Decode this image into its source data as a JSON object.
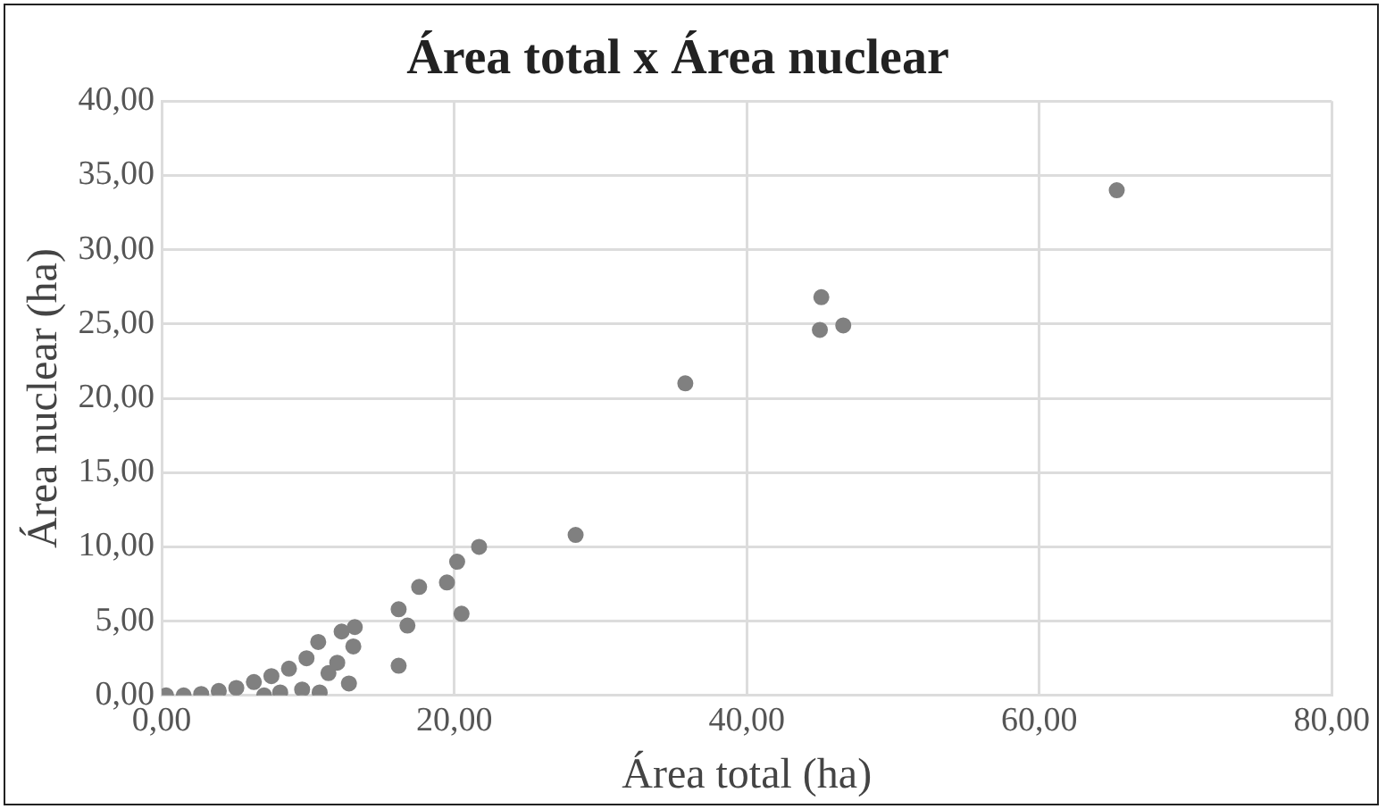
{
  "chart_data": {
    "type": "scatter",
    "title": "Área total x Área nuclear",
    "xlabel": "Área total (ha)",
    "ylabel": "Área nuclear (ha)",
    "x": [
      0.3,
      1.5,
      2.7,
      3.9,
      5.1,
      6.3,
      7.5,
      8.7,
      9.9,
      7.0,
      8.1,
      9.6,
      10.8,
      10.7,
      11.4,
      12.0,
      12.3,
      12.8,
      13.1,
      13.2,
      16.2,
      16.2,
      16.8,
      17.6,
      19.5,
      20.2,
      20.5,
      21.7,
      28.3,
      35.8,
      45.0,
      45.1,
      46.6,
      65.3
    ],
    "values": [
      0.0,
      0.0,
      0.1,
      0.3,
      0.5,
      0.9,
      1.3,
      1.8,
      2.5,
      0.0,
      0.2,
      0.4,
      0.2,
      3.6,
      1.5,
      2.2,
      4.3,
      0.8,
      3.3,
      4.6,
      5.8,
      2.0,
      4.7,
      7.3,
      7.6,
      9.0,
      5.5,
      10.0,
      10.8,
      21.0,
      24.6,
      26.8,
      24.9,
      34.0
    ],
    "color": "#808080",
    "xlim": [
      0,
      80
    ],
    "xticks": [
      {
        "value": 0,
        "label": "0,00"
      },
      {
        "value": 20,
        "label": "20,00"
      },
      {
        "value": 40,
        "label": "40,00"
      },
      {
        "value": 60,
        "label": "60,00"
      },
      {
        "value": 80,
        "label": "80,00"
      }
    ],
    "ylim": [
      0,
      40
    ],
    "yticks": [
      {
        "value": 0,
        "label": "0,00"
      },
      {
        "value": 5,
        "label": "5,00"
      },
      {
        "value": 10,
        "label": "10,00"
      },
      {
        "value": 15,
        "label": "15,00"
      },
      {
        "value": 20,
        "label": "20,00"
      },
      {
        "value": 25,
        "label": "25,00"
      },
      {
        "value": 30,
        "label": "30,00"
      },
      {
        "value": 35,
        "label": "35,00"
      },
      {
        "value": 40,
        "label": "40,00"
      }
    ],
    "grid": true,
    "marker": "circle",
    "legend": false
  }
}
